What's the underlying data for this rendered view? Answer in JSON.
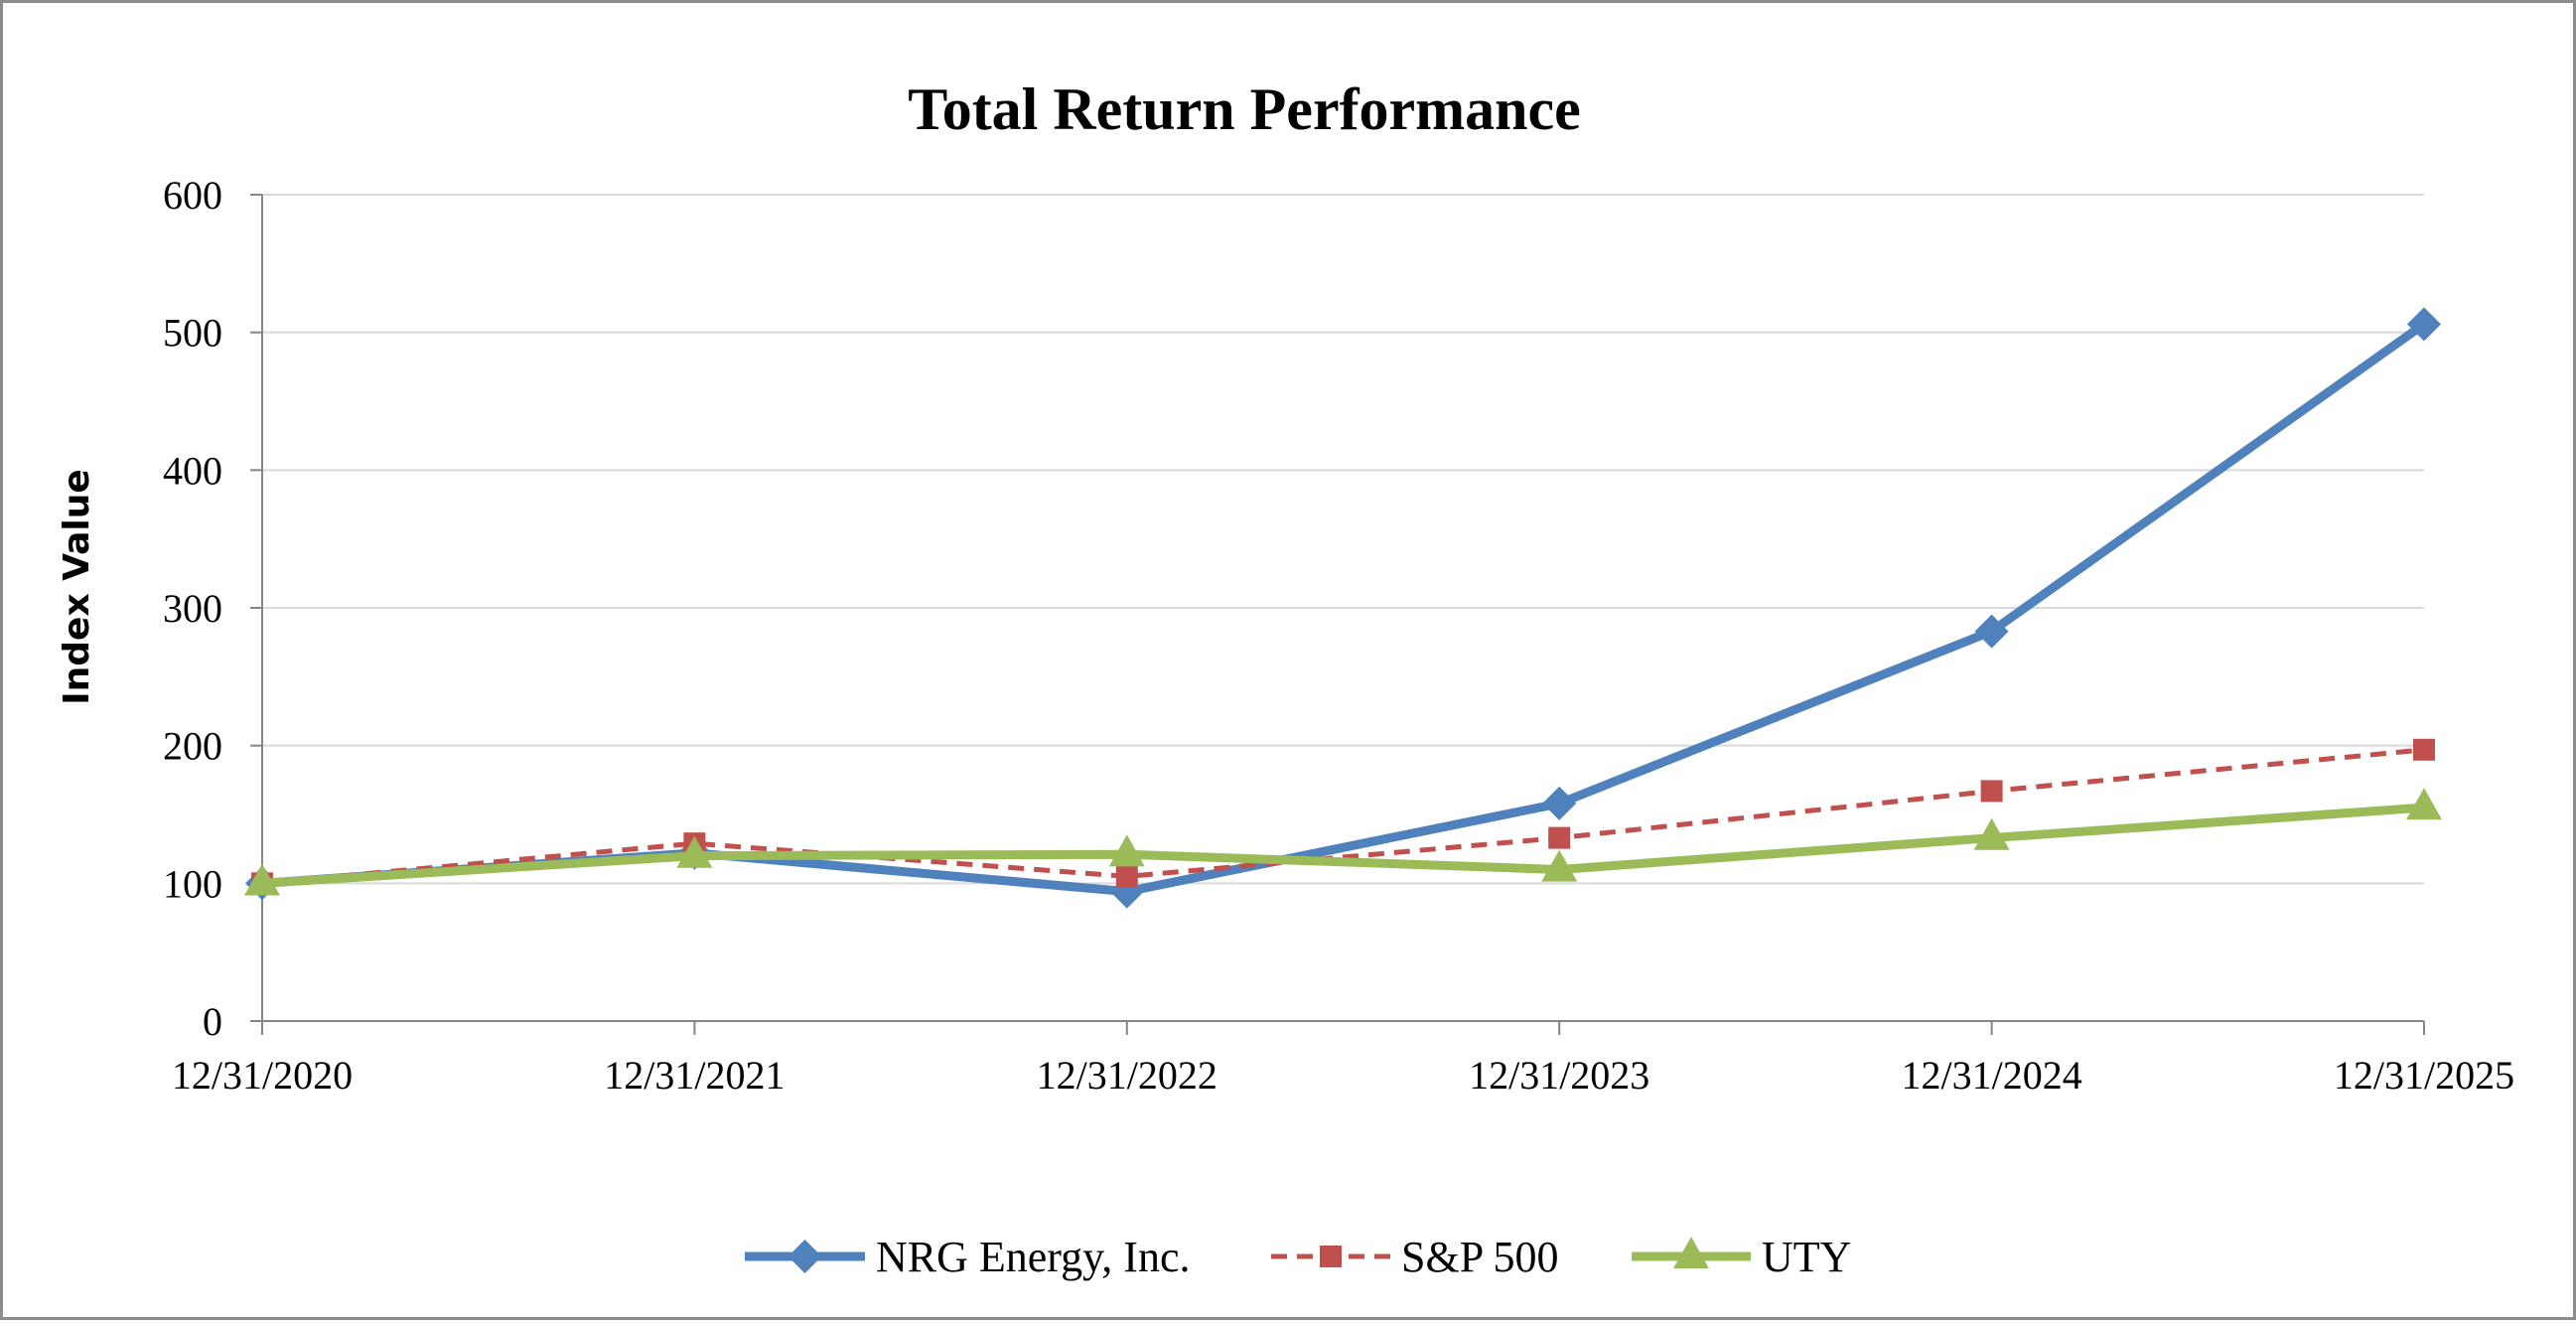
{
  "chart_data": {
    "type": "line",
    "title": "Total Return Performance",
    "xlabel": "",
    "ylabel": "Index Value",
    "categories": [
      "12/31/2020",
      "12/31/2021",
      "12/31/2022",
      "12/31/2023",
      "12/31/2024",
      "12/31/2025"
    ],
    "ylim": [
      0,
      600
    ],
    "yticks": [
      0,
      100,
      200,
      300,
      400,
      500,
      600
    ],
    "grid": true,
    "legend_position": "bottom",
    "series": [
      {
        "name": "NRG Energy, Inc.",
        "values": [
          100,
          122,
          94,
          158,
          283,
          506
        ],
        "color": "#4f81bd",
        "marker": "diamond",
        "line_style": "solid"
      },
      {
        "name": "S&P 500",
        "values": [
          100,
          129,
          105,
          133,
          167,
          197
        ],
        "color": "#c0504d",
        "marker": "square",
        "line_style": "dashed"
      },
      {
        "name": "UTY",
        "values": [
          100,
          120,
          121,
          110,
          133,
          155
        ],
        "color": "#9bbb59",
        "marker": "triangle",
        "line_style": "solid"
      }
    ]
  }
}
